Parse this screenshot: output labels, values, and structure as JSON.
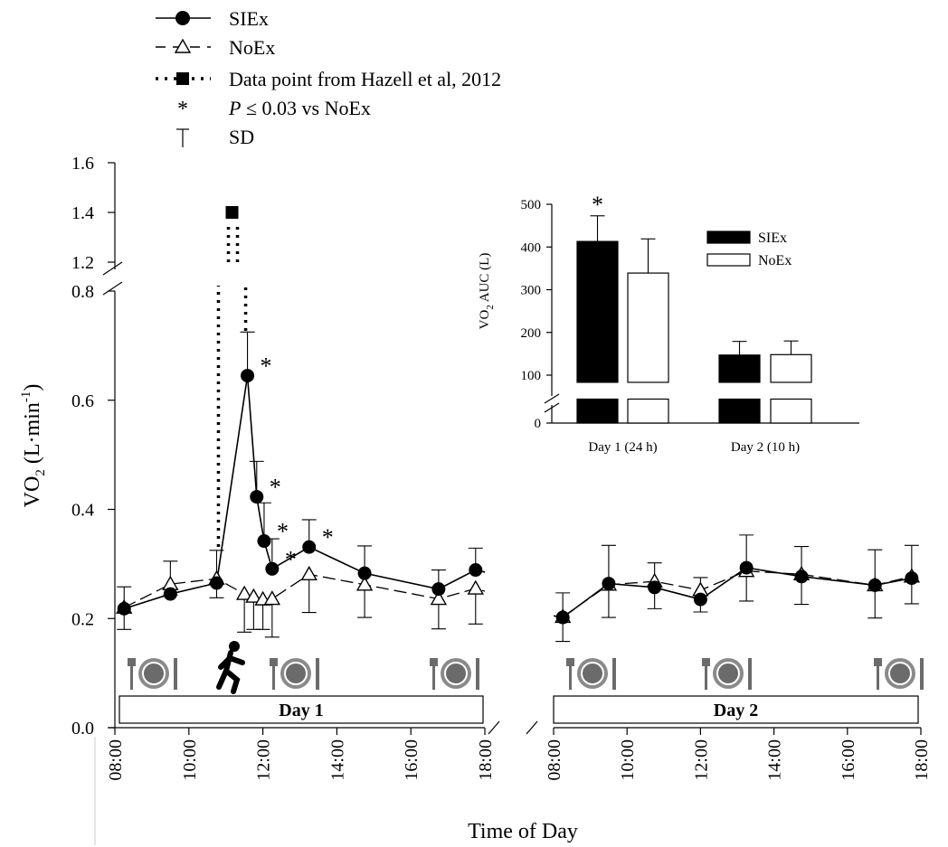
{
  "chart_data": [
    {
      "type": "line",
      "xlabel": "Time of Day",
      "ylabel": "VO",
      "ylabel_sub": "2",
      "ylabel_unit": " (L·min",
      "ylabel_sup": "-1",
      "ylabel_close": ")",
      "yticks": [
        "0.0",
        "0.2",
        "0.4",
        "0.6",
        "0.8",
        "1.2",
        "1.4",
        "1.6"
      ],
      "panels": [
        {
          "xlim": [
            "08:00",
            "18:00"
          ],
          "ticks": [
            "08:00",
            "10:00",
            "12:00",
            "14:00",
            "16:00",
            "18:00"
          ],
          "label": "Day 1"
        },
        {
          "xlim": [
            "08:00",
            "18:00"
          ],
          "ticks": [
            "08:00",
            "10:00",
            "12:00",
            "14:00",
            "16:00",
            "18:00"
          ],
          "label": "Day 2"
        }
      ],
      "legend": [
        {
          "label": "SIEx",
          "style": "solid-circle"
        },
        {
          "label": "NoEx",
          "style": "dashed-triangle"
        },
        {
          "label": "Data point from Hazell et al, 2012",
          "style": "dotted-square"
        },
        {
          "label_italic": "P",
          "label": " ≤ 0.03 vs NoEx",
          "style": "asterisk"
        },
        {
          "label": "SD",
          "style": "errorbar"
        }
      ],
      "series": [
        {
          "name": "SIEx",
          "color": "#000000",
          "day1": [
            [
              "08:15",
              0.218,
              0.04
            ],
            [
              "09:30",
              0.245,
              0.06
            ],
            [
              "10:45",
              0.265,
              0.06
            ],
            [
              "11:35",
              0.645,
              0.08
            ],
            [
              "11:50",
              0.423,
              0.065
            ],
            [
              "12:02",
              0.342,
              0.07
            ],
            [
              "12:15",
              0.291,
              0.055
            ],
            [
              "13:15",
              0.331,
              0.05
            ],
            [
              "14:45",
              0.283,
              0.05
            ],
            [
              "16:45",
              0.254,
              0.035
            ],
            [
              "17:45",
              0.289,
              0.04
            ],
            [
              "18:00",
              0.285,
              0
            ]
          ],
          "day2": [
            [
              "08:00",
              0.205,
              0
            ],
            [
              "08:15",
              0.202,
              0.045
            ],
            [
              "09:30",
              0.264,
              0.07
            ],
            [
              "10:45",
              0.257,
              0.045
            ],
            [
              "12:00",
              0.235,
              0.04
            ],
            [
              "13:15",
              0.293,
              0.06
            ],
            [
              "14:45",
              0.277,
              0.055
            ],
            [
              "16:45",
              0.261,
              0.065
            ],
            [
              "17:45",
              0.274,
              0.06
            ]
          ],
          "significant_day1": [
            "11:35",
            "11:50",
            "12:02",
            "12:15",
            "13:15"
          ]
        },
        {
          "name": "NoEx",
          "color": "#ffffff",
          "day1": [
            [
              "08:15",
              0.22,
              0.04
            ],
            [
              "09:30",
              0.263,
              0.02
            ],
            [
              "10:45",
              0.273,
              0.035
            ],
            [
              "11:30",
              0.245,
              0.07
            ],
            [
              "11:45",
              0.24,
              0.06
            ],
            [
              "12:00",
              0.235,
              0.055
            ],
            [
              "12:15",
              0.236,
              0.07
            ],
            [
              "13:15",
              0.281,
              0.07
            ],
            [
              "14:45",
              0.262,
              0.06
            ],
            [
              "16:45",
              0.236,
              0.055
            ],
            [
              "17:45",
              0.255,
              0.065
            ],
            [
              "18:00",
              0.25,
              0
            ]
          ],
          "day2": [
            [
              "08:15",
              0.203,
              0.045
            ],
            [
              "09:30",
              0.262,
              0.06
            ],
            [
              "10:45",
              0.268,
              0.05
            ],
            [
              "12:00",
              0.252,
              0.04
            ],
            [
              "13:15",
              0.287,
              0.055
            ],
            [
              "14:45",
              0.281,
              0.055
            ],
            [
              "16:45",
              0.261,
              0.06
            ],
            [
              "17:45",
              0.277,
              0.05
            ]
          ]
        },
        {
          "name": "Data point from Hazell et al, 2012",
          "color": "#000000",
          "day1": [
            [
              "11:10",
              1.4,
              0.1
            ]
          ]
        }
      ],
      "meal_icons": [
        "08:15",
        "12:30",
        "17:45",
        "08:30",
        "14:00",
        "18:00"
      ],
      "runner_icon": "runner-icon",
      "meal_icon": "plate-fork-knife-icon"
    },
    {
      "type": "bar",
      "ylabel": "VO",
      "ylabel_sub": "2",
      "ylabel_rest": " AUC (L)",
      "categories": [
        "Day 1 (24 h)",
        "Day 2 (10 h)"
      ],
      "yticks": [
        "0",
        "100",
        "200",
        "300",
        "400",
        "500"
      ],
      "ylim": [
        0,
        500
      ],
      "series": [
        {
          "name": "SIEx",
          "color": "#000000",
          "values": [
            413,
            147
          ],
          "sd": [
            60,
            32
          ]
        },
        {
          "name": "NoEx",
          "color": "#ffffff",
          "values": [
            339,
            148
          ],
          "sd": [
            80,
            32
          ]
        }
      ],
      "significant": [
        "Day 1 (24 h)"
      ],
      "star_symbol": "*"
    }
  ]
}
